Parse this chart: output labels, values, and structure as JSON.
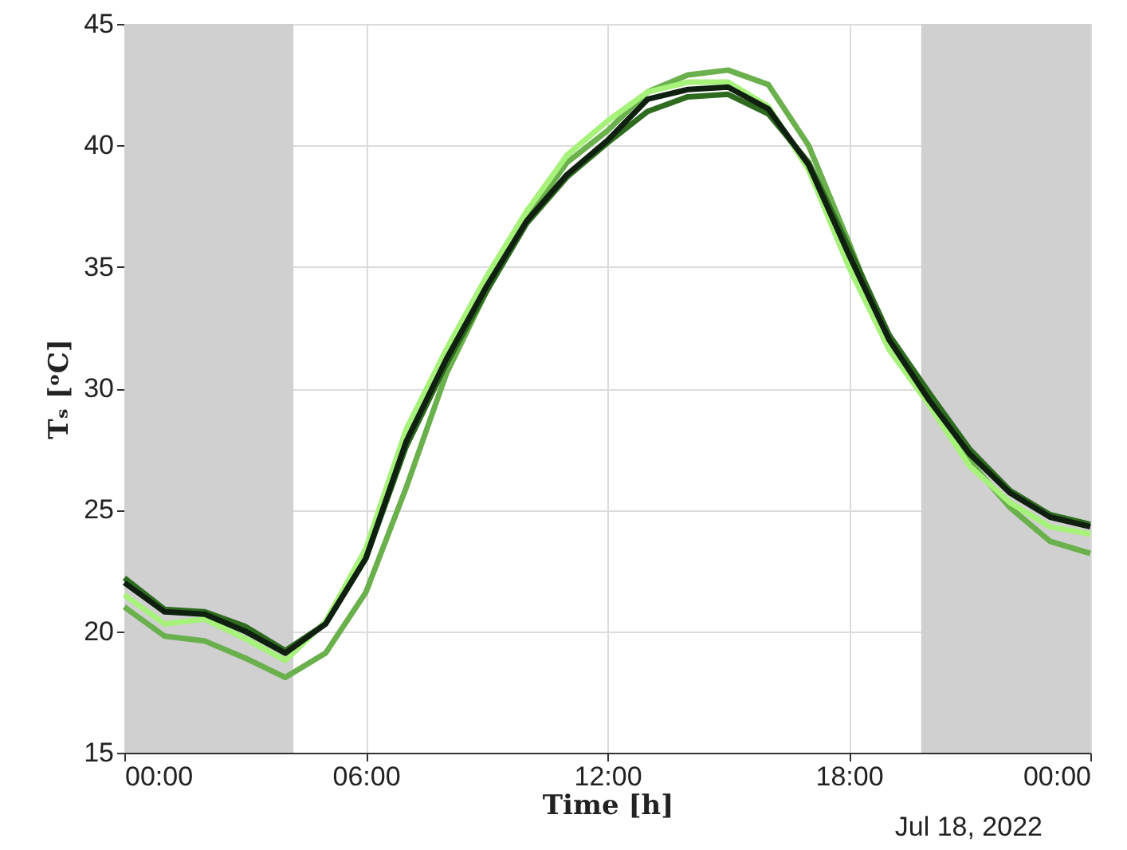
{
  "chart_data": {
    "type": "line",
    "xlabel": "Time [h]",
    "ylabel": "Tₛ [ᵒC]",
    "x": [
      0,
      1,
      2,
      3,
      4,
      5,
      6,
      7,
      8,
      9,
      10,
      11,
      12,
      13,
      14,
      15,
      16,
      17,
      18,
      19,
      20,
      21,
      22,
      23,
      24
    ],
    "series": [
      {
        "color": "#6ab04c",
        "values": [
          21.0,
          19.8,
          19.6,
          18.9,
          18.1,
          19.1,
          21.6,
          25.9,
          30.6,
          34.0,
          37.0,
          39.3,
          40.6,
          42.2,
          42.9,
          43.1,
          42.5,
          40.0,
          36.0,
          31.8,
          29.5,
          27.0,
          25.1,
          23.7,
          23.2
        ]
      },
      {
        "color": "#a6f27a",
        "values": [
          21.5,
          20.3,
          20.5,
          19.7,
          18.8,
          20.4,
          23.4,
          28.3,
          31.6,
          34.6,
          37.3,
          39.6,
          41.0,
          42.2,
          42.6,
          42.6,
          41.6,
          39.0,
          35.0,
          31.6,
          29.3,
          26.8,
          25.3,
          24.3,
          24.0
        ]
      },
      {
        "color": "#2e6b1f",
        "values": [
          22.2,
          20.9,
          20.8,
          20.2,
          19.2,
          20.3,
          23.0,
          27.6,
          31.0,
          34.0,
          36.8,
          38.7,
          40.1,
          41.4,
          42.0,
          42.1,
          41.3,
          39.3,
          35.8,
          32.2,
          29.8,
          27.5,
          25.8,
          24.8,
          24.4
        ]
      },
      {
        "color": "#102010",
        "values": [
          22.0,
          20.8,
          20.7,
          20.0,
          19.1,
          20.3,
          23.0,
          27.8,
          31.2,
          34.2,
          36.9,
          38.8,
          40.2,
          41.9,
          42.3,
          42.4,
          41.5,
          39.2,
          35.5,
          32.0,
          29.5,
          27.3,
          25.7,
          24.7,
          24.3
        ]
      }
    ],
    "xlim": [
      0,
      24
    ],
    "xticks": [
      {
        "value": 0,
        "label": "00:00"
      },
      {
        "value": 6,
        "label": "06:00"
      },
      {
        "value": 12,
        "label": "12:00"
      },
      {
        "value": 18,
        "label": "18:00"
      },
      {
        "value": 24,
        "label": "00:00"
      }
    ],
    "ylim": [
      15,
      45
    ],
    "yticks": [
      15,
      20,
      25,
      30,
      35,
      40,
      45
    ],
    "bands": [
      {
        "axis": "x",
        "from": 0,
        "to": 4.2,
        "color": "#d0d0d0"
      },
      {
        "axis": "x",
        "from": 19.8,
        "to": 24,
        "color": "#d0d0d0"
      }
    ],
    "annotations": [
      "Jul 18, 2022"
    ],
    "grid": true,
    "line_style": "solid",
    "marker": "none"
  }
}
